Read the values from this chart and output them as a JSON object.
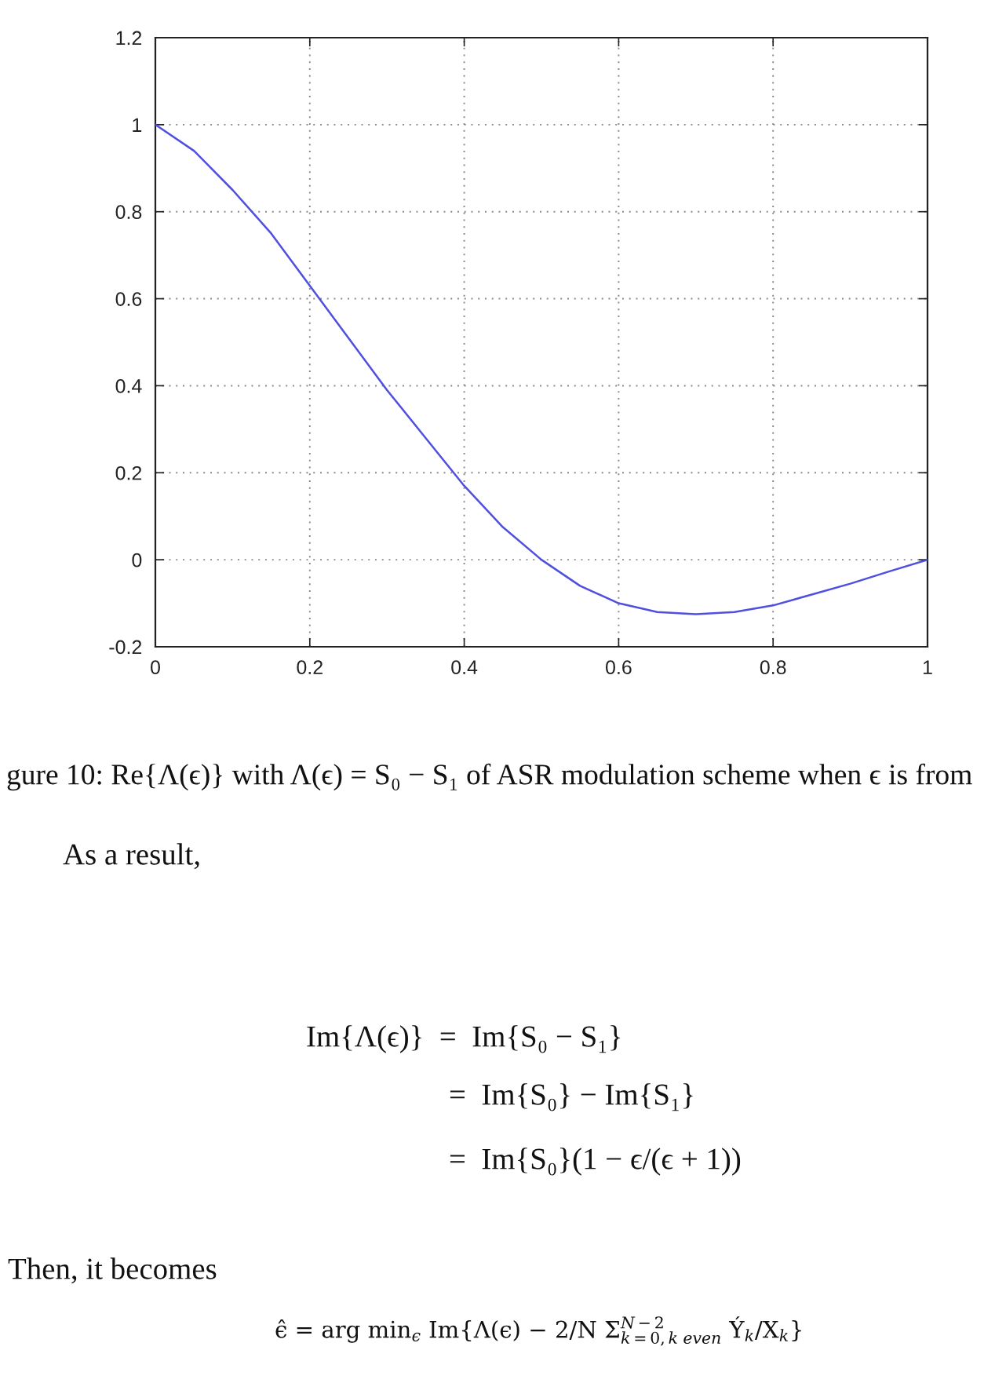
{
  "chart_data": {
    "type": "line",
    "x": [
      0,
      0.05,
      0.1,
      0.15,
      0.2,
      0.25,
      0.3,
      0.35,
      0.4,
      0.45,
      0.5,
      0.55,
      0.6,
      0.65,
      0.7,
      0.75,
      0.8,
      0.85,
      0.9,
      0.95,
      1
    ],
    "series": [
      {
        "color": "#4f4fe0",
        "values": [
          1,
          0.94,
          0.85,
          0.75,
          0.63,
          0.51,
          0.39,
          0.28,
          0.17,
          0.075,
          0,
          -0.06,
          -0.1,
          -0.12,
          -0.125,
          -0.12,
          -0.105,
          -0.08,
          -0.055,
          -0.027,
          0
        ]
      }
    ],
    "xlim": [
      0,
      1
    ],
    "ylim": [
      -0.2,
      1.2
    ],
    "xticks": [
      0,
      0.2,
      0.4,
      0.6,
      0.8,
      1
    ],
    "yticks": [
      -0.2,
      0,
      0.2,
      0.4,
      0.6,
      0.8,
      1,
      1.2
    ],
    "grid": true,
    "line_style": "solid",
    "annotations": [
      "gure 10: Re{Λ(ϵ)} with Λ(ϵ) = S₀ − S₁ of ASR modulation scheme when ϵ is from",
      "As a result,",
      "Im{Λ(ϵ)}  =  Im{S₀ − S₁}",
      "=  Im{S₀} − Im{S₁}",
      "=  Im{S₀}(1 − ϵ/(ϵ + 1))",
      "Then, it becomes",
      "ϵ̂ = arg min$_{ϵ}$ Im{Λ(ϵ) − 2/N Σ$^{N−2}$$_{k=0,k}$$_{even}$ Ý$_{k}$/X$_{k}$}"
    ]
  }
}
